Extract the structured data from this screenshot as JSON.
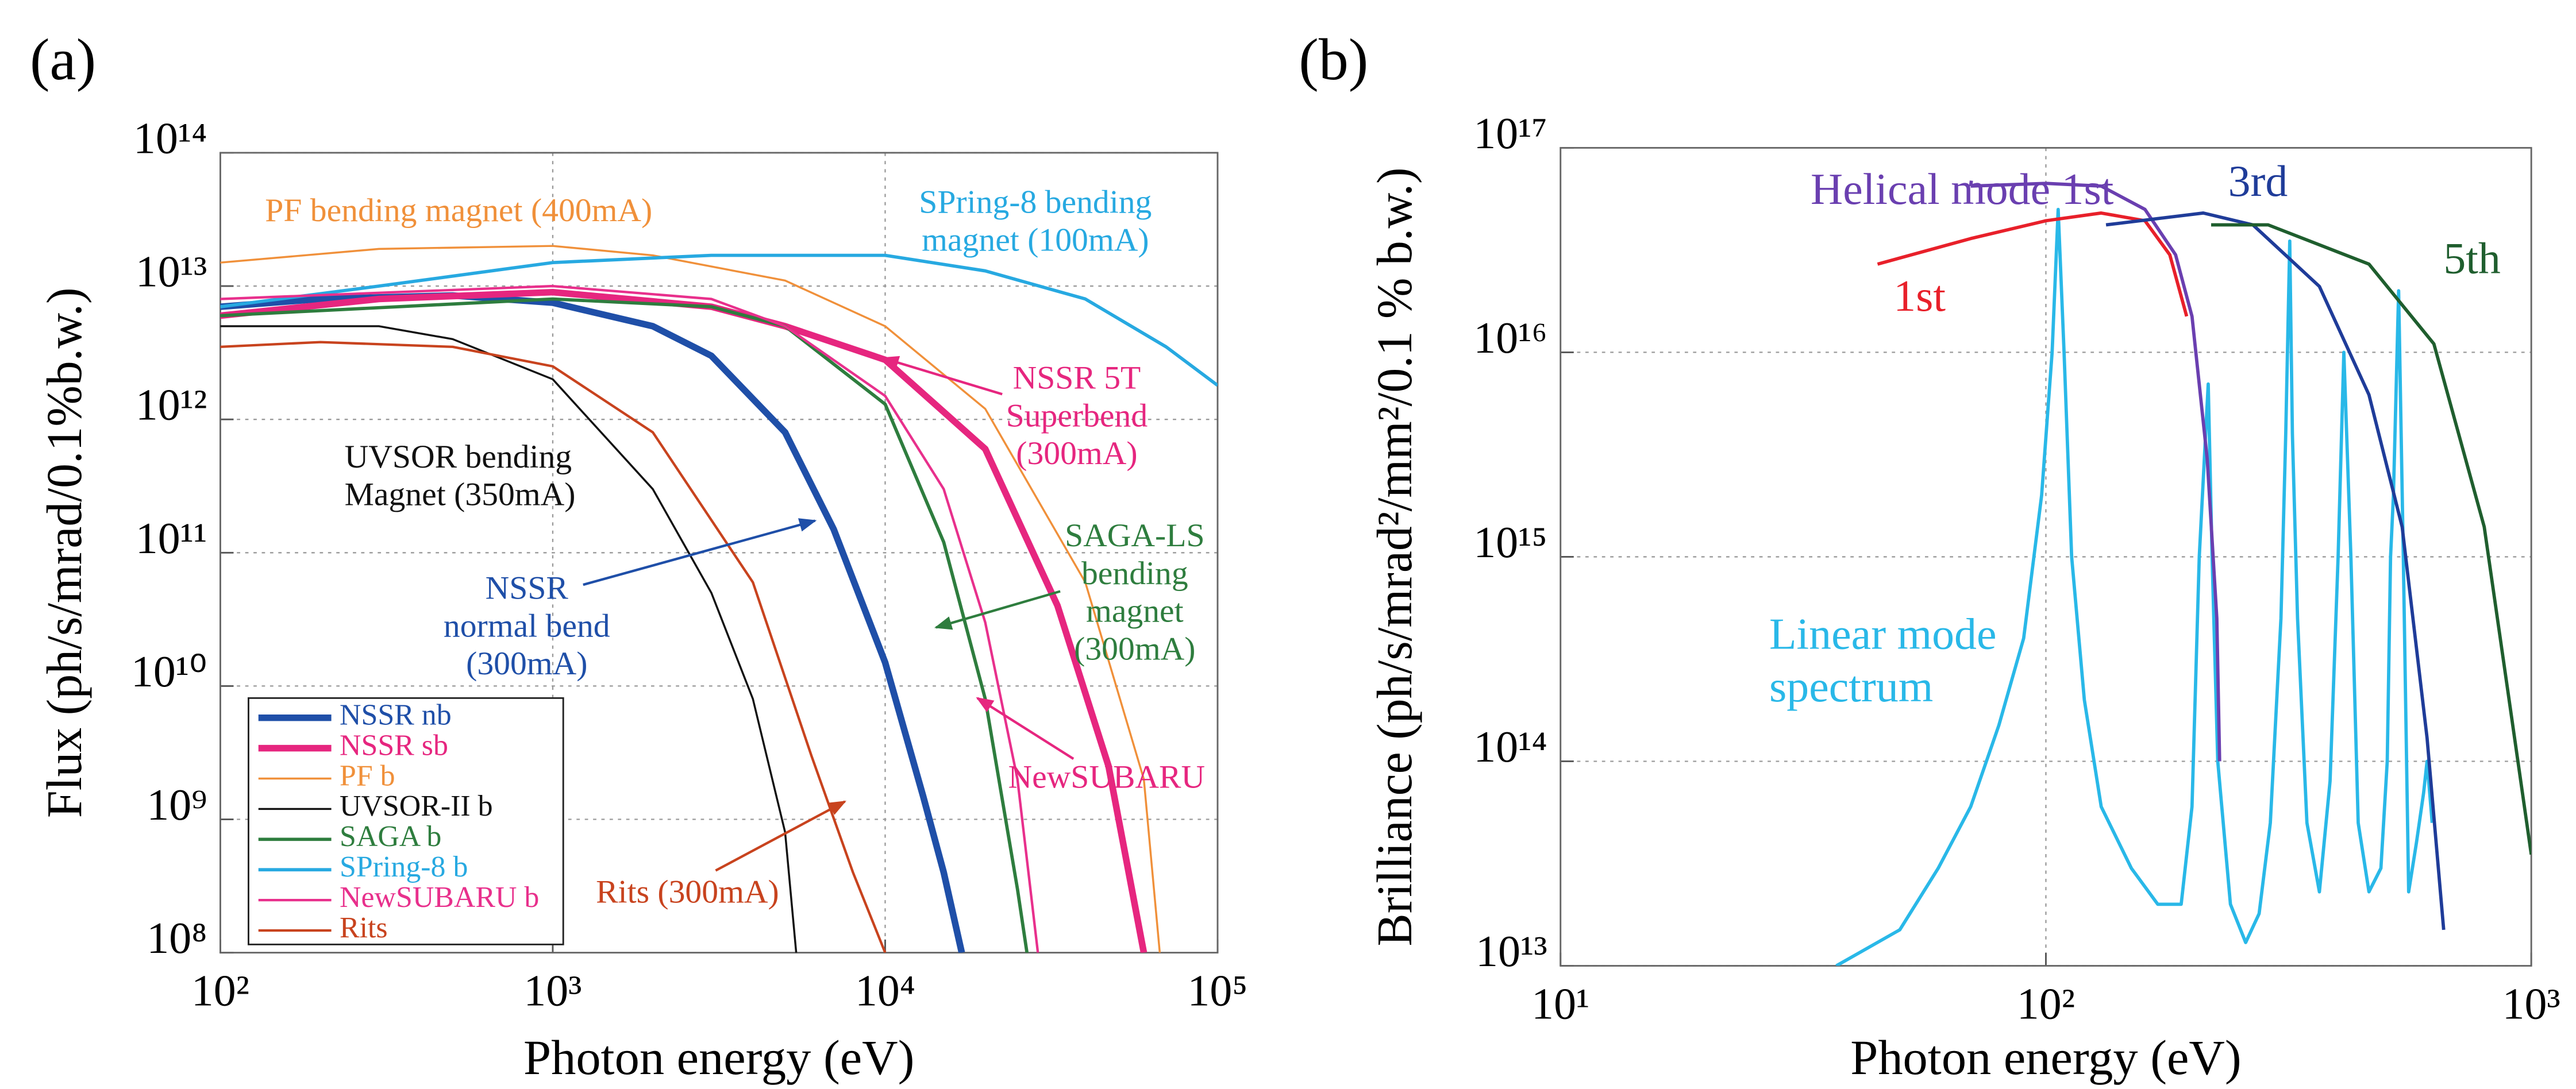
{
  "chart_data": [
    {
      "type": "line",
      "panel_label": "(a)",
      "xlabel": "Photon energy (eV)",
      "ylabel": "Flux (ph/s/mrad/0.1%b.w.)",
      "xscale": "log",
      "yscale": "log",
      "grid": true,
      "legend": "lower left",
      "xlim": [
        100,
        100000
      ],
      "ylim": [
        100000000.0,
        100000000000000.0
      ],
      "xticks": [
        {
          "value": 100,
          "label": "10²"
        },
        {
          "value": 1000,
          "label": "10³"
        },
        {
          "value": 10000,
          "label": "10⁴"
        },
        {
          "value": 100000,
          "label": "10⁵"
        }
      ],
      "yticks": [
        {
          "value": 100000000.0,
          "label": "10⁸"
        },
        {
          "value": 1000000000.0,
          "label": "10⁹"
        },
        {
          "value": 10000000000.0,
          "label": "10¹⁰"
        },
        {
          "value": 100000000000.0,
          "label": "10¹¹"
        },
        {
          "value": 1000000000000.0,
          "label": "10¹²"
        },
        {
          "value": 10000000000000.0,
          "label": "10¹³"
        },
        {
          "value": 100000000000000.0,
          "label": "10¹⁴"
        }
      ],
      "series": [
        {
          "name": "NSSR nb",
          "color": "#1f4fa8",
          "linewidth": 4,
          "x": [
            100,
            200,
            500,
            1000,
            2000,
            3000,
            5000,
            7000,
            10000,
            13000,
            15000,
            17000
          ],
          "values": [
            7000000000000.0,
            8000000000000.0,
            8500000000000.0,
            7500000000000.0,
            5000000000000.0,
            3000000000000.0,
            800000000000.0,
            150000000000.0,
            15000000000.0,
            1500000000.0,
            400000000.0,
            100000000.0
          ]
        },
        {
          "name": "NSSR sb",
          "color": "#e6267f",
          "linewidth": 4,
          "x": [
            100,
            300,
            1000,
            3000,
            5000,
            10000,
            20000,
            33000,
            47000,
            60000
          ],
          "values": [
            6000000000000.0,
            8000000000000.0,
            9000000000000.0,
            7000000000000.0,
            5000000000000.0,
            2800000000000.0,
            600000000000.0,
            40000000000.0,
            2500000000.0,
            100000000.0
          ]
        },
        {
          "name": "PF b",
          "color": "#f0903a",
          "linewidth": 1.2,
          "x": [
            100,
            300,
            1000,
            2000,
            5000,
            10000,
            20000,
            40000,
            60000,
            67000
          ],
          "values": [
            15000000000000.0,
            19000000000000.0,
            20000000000000.0,
            17000000000000.0,
            11000000000000.0,
            5000000000000.0,
            1200000000000.0,
            60000000000.0,
            2000000000.0,
            100000000.0
          ]
        },
        {
          "name": "UVSOR-II b",
          "color": "#111111",
          "linewidth": 1.2,
          "x": [
            100,
            300,
            500,
            1000,
            2000,
            3000,
            4000,
            5000,
            5400
          ],
          "values": [
            5000000000000.0,
            5000000000000.0,
            4000000000000.0,
            2000000000000.0,
            300000000000.0,
            50000000000.0,
            8000000000.0,
            800000000.0,
            100000000.0
          ]
        },
        {
          "name": "SAGA b",
          "color": "#2e7d3e",
          "linewidth": 2,
          "x": [
            100,
            1000,
            3000,
            5000,
            10000,
            15000,
            20000,
            25000,
            26700
          ],
          "values": [
            6000000000000.0,
            8000000000000.0,
            7000000000000.0,
            5000000000000.0,
            1300000000000.0,
            120000000000.0,
            8000000000.0,
            300000000.0,
            100000000.0
          ]
        },
        {
          "name": "SPring-8 b",
          "color": "#27a9e1",
          "linewidth": 2,
          "x": [
            100,
            300,
            1000,
            3000,
            10000,
            20000,
            40000,
            70000,
            100000
          ],
          "values": [
            7000000000000.0,
            10000000000000.0,
            15000000000000.0,
            17000000000000.0,
            17000000000000.0,
            13000000000000.0,
            8000000000000.0,
            3500000000000.0,
            1800000000000.0
          ]
        },
        {
          "name": "NewSUBARU b",
          "color": "#e8308c",
          "linewidth": 1.5,
          "x": [
            100,
            1000,
            3000,
            5000,
            10000,
            15000,
            20000,
            25000,
            28800
          ],
          "values": [
            8000000000000.0,
            10000000000000.0,
            8000000000000.0,
            5000000000000.0,
            1500000000000.0,
            300000000000.0,
            30000000000.0,
            2000000000.0,
            100000000.0
          ]
        },
        {
          "name": "Rits",
          "color": "#c8431e",
          "linewidth": 1.5,
          "x": [
            100,
            200,
            500,
            1000,
            2000,
            4000,
            6000,
            8000,
            10000
          ],
          "values": [
            3500000000000.0,
            3800000000000.0,
            3500000000000.0,
            2500000000000.0,
            800000000000.0,
            60000000000.0,
            3000000000.0,
            400000000.0,
            100000000.0
          ]
        }
      ],
      "annotations": [
        {
          "lines": [
            "PF bending magnet (400mA)"
          ],
          "color": "#f0903a"
        },
        {
          "lines": [
            "SPring-8 bending",
            "magnet (100mA)"
          ],
          "color": "#27a9e1"
        },
        {
          "lines": [
            "NSSR 5T",
            "Superbend",
            "(300mA)"
          ],
          "color": "#e6267f"
        },
        {
          "lines": [
            "UVSOR bending",
            "Magnet (350mA)"
          ],
          "color": "#111111"
        },
        {
          "lines": [
            "SAGA-LS",
            "bending",
            "magnet",
            "(300mA)"
          ],
          "color": "#2e7d3e"
        },
        {
          "lines": [
            "NSSR",
            "normal bend",
            "(300mA)"
          ],
          "color": "#1f4fa8"
        },
        {
          "lines": [
            "NewSUBARU"
          ],
          "color": "#e6267f"
        },
        {
          "lines": [
            "Rits (300mA)"
          ],
          "color": "#c8431e"
        }
      ]
    },
    {
      "type": "line",
      "panel_label": "(b)",
      "xlabel": "Photon energy (eV)",
      "ylabel": "Brilliance (ph/s/mrad²/mm²/0.1 % b.w.)",
      "xscale": "log",
      "yscale": "log",
      "grid": true,
      "xlim": [
        10,
        1000
      ],
      "ylim": [
        10000000000000.0,
        1e+17
      ],
      "xticks": [
        {
          "value": 10,
          "label": "10¹"
        },
        {
          "value": 100,
          "label": "10²"
        },
        {
          "value": 1000,
          "label": "10³"
        }
      ],
      "yticks": [
        {
          "value": 10000000000000.0,
          "label": "10¹³"
        },
        {
          "value": 100000000000000.0,
          "label": "10¹⁴"
        },
        {
          "value": 1000000000000000.0,
          "label": "10¹⁵"
        },
        {
          "value": 1e+16,
          "label": "10¹⁶"
        },
        {
          "value": 1e+17,
          "label": "10¹⁷"
        }
      ],
      "series": [
        {
          "name": "Linear mode spectrum",
          "color": "#29b8e8",
          "linewidth": 2,
          "x": [
            37,
            50,
            60,
            70,
            80,
            90,
            98,
            103,
            106,
            109,
            113,
            120,
            130,
            150,
            170,
            190,
            200,
            207,
            216,
            220,
            226,
            240,
            258,
            275,
            290,
            305,
            312,
            318,
            322,
            330,
            345,
            366,
            385,
            400,
            411,
            425,
            440,
            463,
            490,
            505,
            513,
            520,
            533,
            545,
            559,
            580,
            600,
            610,
            625
          ],
          "values": [
            10000000000000.0,
            15000000000000.0,
            30000000000000.0,
            60000000000000.0,
            150000000000000.0,
            400000000000000.0,
            2000000000000000.0,
            1e+16,
            5e+16,
            1e+16,
            1000000000000000.0,
            200000000000000.0,
            60000000000000.0,
            30000000000000.0,
            20000000000000.0,
            20000000000000.0,
            60000000000000.0,
            1000000000000000.0,
            7000000000000000.0,
            1000000000000000.0,
            100000000000000.0,
            20000000000000.0,
            13000000000000.0,
            18000000000000.0,
            50000000000000.0,
            500000000000000.0,
            4000000000000000.0,
            3.5e+16,
            4000000000000000.0,
            500000000000000.0,
            50000000000000.0,
            23000000000000.0,
            80000000000000.0,
            1000000000000000.0,
            1e+16,
            1000000000000000.0,
            50000000000000.0,
            23000000000000.0,
            30000000000000.0,
            100000000000000.0,
            1000000000000000.0,
            2000000000000000.0,
            2e+16,
            1000000000000000.0,
            23000000000000.0,
            40000000000000.0,
            70000000000000.0,
            100000000000000.0,
            50000000000000.0
          ]
        },
        {
          "name": "1st",
          "color": "#e8202a",
          "linewidth": 2,
          "x": [
            45,
            70,
            100,
            130,
            160,
            180,
            195
          ],
          "values": [
            2.7e+16,
            3.6e+16,
            4.4e+16,
            4.8e+16,
            4.4e+16,
            3e+16,
            1.5e+16
          ]
        },
        {
          "name": "Helical mode 1st",
          "color": "#6a3fb0",
          "linewidth": 2,
          "x": [
            70,
            100,
            130,
            160,
            185,
            200,
            215,
            225,
            228
          ],
          "values": [
            6.5e+16,
            6.7e+16,
            6.5e+16,
            5e+16,
            3e+16,
            1.5e+16,
            3000000000000000.0,
            500000000000000.0,
            100000000000000.0
          ]
        },
        {
          "name": "3rd",
          "color": "#1f3c99",
          "linewidth": 2,
          "x": [
            133,
            211,
            267,
            366,
            463,
            542,
            610,
            660
          ],
          "values": [
            4.2e+16,
            4.8e+16,
            4.2e+16,
            2.1e+16,
            6200000000000000.0,
            1400000000000000.0,
            130000000000000.0,
            15000000000000.0
          ]
        },
        {
          "name": "5th",
          "color": "#1f5e2e",
          "linewidth": 2,
          "x": [
            219,
            287,
            463,
            630,
            800,
            895,
            1000
          ],
          "values": [
            4.2e+16,
            4.2e+16,
            2.7e+16,
            1.1e+16,
            1400000000000000.0,
            220000000000000.0,
            35000000000000.0
          ]
        }
      ]
    }
  ]
}
